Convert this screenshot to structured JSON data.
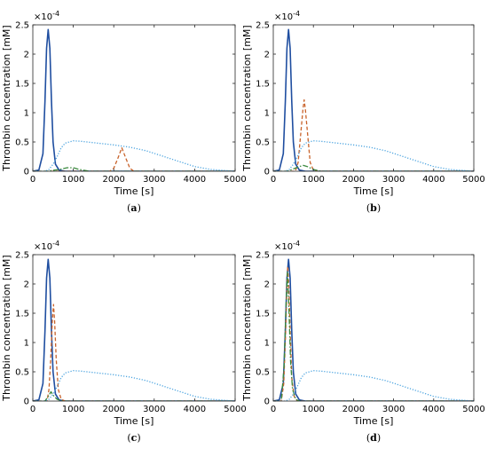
{
  "chart_data": [
    {
      "type": "line",
      "caption": "a",
      "exponent_label": "×10",
      "exponent_power": "-4",
      "xlabel": "Time [s]",
      "ylabel": "Thrombin concentration [mM]",
      "xlim": [
        0,
        5000
      ],
      "ylim": [
        0,
        0.00025
      ],
      "xticks": [
        "0",
        "1000",
        "2000",
        "3000",
        "4000",
        "5000"
      ],
      "yticks": [
        "0",
        "0.5",
        "1",
        "1.5",
        "2",
        "2.5"
      ],
      "grid": false,
      "series": [
        {
          "style": "solid",
          "color": "#1f4ea0",
          "points": [
            [
              0,
              0
            ],
            [
              150,
              2e-06
            ],
            [
              250,
              3e-05
            ],
            [
              300,
              0.00012
            ],
            [
              340,
              0.00021
            ],
            [
              380,
              0.000242
            ],
            [
              420,
              0.00021
            ],
            [
              460,
              0.00012
            ],
            [
              500,
              5e-05
            ],
            [
              560,
              1.2e-05
            ],
            [
              650,
              2e-06
            ],
            [
              800,
              0
            ],
            [
              5000,
              0
            ]
          ]
        },
        {
          "style": "dashed",
          "color": "#c8622a",
          "points": [
            [
              0,
              0
            ],
            [
              1900,
              0
            ],
            [
              2000,
              5e-06
            ],
            [
              2100,
              2.2e-05
            ],
            [
              2200,
              4e-05
            ],
            [
              2300,
              2.2e-05
            ],
            [
              2400,
              5e-06
            ],
            [
              2500,
              0
            ],
            [
              5000,
              0
            ]
          ]
        },
        {
          "style": "dashdot",
          "color": "#3b8a3e",
          "points": [
            [
              0,
              0
            ],
            [
              350,
              0
            ],
            [
              450,
              1e-06
            ],
            [
              650,
              3e-06
            ],
            [
              850,
              6e-06
            ],
            [
              1000,
              6e-06
            ],
            [
              1150,
              3e-06
            ],
            [
              1400,
              0
            ],
            [
              5000,
              0
            ]
          ]
        },
        {
          "style": "dotted",
          "color": "#4aa3df",
          "points": [
            [
              0,
              0
            ],
            [
              300,
              0
            ],
            [
              400,
              3e-06
            ],
            [
              500,
              1.2e-05
            ],
            [
              600,
              2.5e-05
            ],
            [
              700,
              4e-05
            ],
            [
              800,
              4.8e-05
            ],
            [
              1000,
              5.2e-05
            ],
            [
              1200,
              5.1e-05
            ],
            [
              1600,
              4.8e-05
            ],
            [
              2000,
              4.5e-05
            ],
            [
              2400,
              4.1e-05
            ],
            [
              2800,
              3.5e-05
            ],
            [
              3200,
              2.6e-05
            ],
            [
              3600,
              1.7e-05
            ],
            [
              4000,
              8e-06
            ],
            [
              4400,
              3e-06
            ],
            [
              4800,
              1e-06
            ],
            [
              5000,
              0
            ]
          ]
        }
      ]
    },
    {
      "type": "line",
      "caption": "b",
      "exponent_label": "×10",
      "exponent_power": "-4",
      "xlabel": "Time [s]",
      "ylabel": "Thrombin concentration [mM]",
      "xlim": [
        0,
        5000
      ],
      "ylim": [
        0,
        0.00025
      ],
      "xticks": [
        "0",
        "1000",
        "2000",
        "3000",
        "4000",
        "5000"
      ],
      "yticks": [
        "0",
        "0.5",
        "1",
        "1.5",
        "2",
        "2.5"
      ],
      "grid": false,
      "series": [
        {
          "style": "solid",
          "color": "#1f4ea0",
          "points": [
            [
              0,
              0
            ],
            [
              150,
              2e-06
            ],
            [
              250,
              3e-05
            ],
            [
              300,
              0.00012
            ],
            [
              340,
              0.00021
            ],
            [
              380,
              0.000242
            ],
            [
              420,
              0.00021
            ],
            [
              460,
              0.00012
            ],
            [
              500,
              5e-05
            ],
            [
              560,
              1.2e-05
            ],
            [
              650,
              2e-06
            ],
            [
              800,
              0
            ],
            [
              5000,
              0
            ]
          ]
        },
        {
          "style": "dashed",
          "color": "#c8622a",
          "points": [
            [
              0,
              0
            ],
            [
              550,
              0
            ],
            [
              620,
              1.5e-05
            ],
            [
              680,
              6e-05
            ],
            [
              740,
              0.000105
            ],
            [
              770,
              0.000122
            ],
            [
              800,
              0.000105
            ],
            [
              860,
              6e-05
            ],
            [
              920,
              1.5e-05
            ],
            [
              1000,
              2e-06
            ],
            [
              1100,
              0
            ],
            [
              5000,
              0
            ]
          ]
        },
        {
          "style": "dashdot",
          "color": "#3b8a3e",
          "points": [
            [
              0,
              0
            ],
            [
              350,
              0
            ],
            [
              500,
              4e-06
            ],
            [
              650,
              8e-06
            ],
            [
              750,
              1e-05
            ],
            [
              850,
              8e-06
            ],
            [
              1000,
              3e-06
            ],
            [
              1200,
              0
            ],
            [
              5000,
              0
            ]
          ]
        },
        {
          "style": "dotted",
          "color": "#4aa3df",
          "points": [
            [
              0,
              0
            ],
            [
              300,
              0
            ],
            [
              400,
              3e-06
            ],
            [
              500,
              1.2e-05
            ],
            [
              600,
              2.5e-05
            ],
            [
              700,
              4e-05
            ],
            [
              800,
              4.8e-05
            ],
            [
              1000,
              5.2e-05
            ],
            [
              1200,
              5.1e-05
            ],
            [
              1600,
              4.8e-05
            ],
            [
              2000,
              4.5e-05
            ],
            [
              2400,
              4.1e-05
            ],
            [
              2800,
              3.5e-05
            ],
            [
              3200,
              2.6e-05
            ],
            [
              3600,
              1.7e-05
            ],
            [
              4000,
              8e-06
            ],
            [
              4400,
              3e-06
            ],
            [
              4800,
              1e-06
            ],
            [
              5000,
              0
            ]
          ]
        }
      ]
    },
    {
      "type": "line",
      "caption": "c",
      "exponent_label": "×10",
      "exponent_power": "-4",
      "xlabel": "Time [s]",
      "ylabel": "Thrombin concentration [mM]",
      "xlim": [
        0,
        5000
      ],
      "ylim": [
        0,
        0.00025
      ],
      "xticks": [
        "0",
        "1000",
        "2000",
        "3000",
        "4000",
        "5000"
      ],
      "yticks": [
        "0",
        "0.5",
        "1",
        "1.5",
        "2",
        "2.5"
      ],
      "grid": false,
      "series": [
        {
          "style": "solid",
          "color": "#1f4ea0",
          "points": [
            [
              0,
              0
            ],
            [
              150,
              2e-06
            ],
            [
              250,
              3e-05
            ],
            [
              300,
              0.00012
            ],
            [
              340,
              0.00021
            ],
            [
              380,
              0.000242
            ],
            [
              420,
              0.00021
            ],
            [
              460,
              0.00012
            ],
            [
              500,
              5e-05
            ],
            [
              560,
              1.2e-05
            ],
            [
              650,
              2e-06
            ],
            [
              800,
              0
            ],
            [
              5000,
              0
            ]
          ]
        },
        {
          "style": "dashed",
          "color": "#c8622a",
          "points": [
            [
              0,
              0
            ],
            [
              350,
              0
            ],
            [
              400,
              2e-05
            ],
            [
              440,
              7e-05
            ],
            [
              480,
              0.000135
            ],
            [
              510,
              0.000165
            ],
            [
              540,
              0.000135
            ],
            [
              580,
              7e-05
            ],
            [
              630,
              2e-05
            ],
            [
              700,
              3e-06
            ],
            [
              800,
              0
            ],
            [
              5000,
              0
            ]
          ]
        },
        {
          "style": "dashdot",
          "color": "#3b8a3e",
          "points": [
            [
              0,
              0
            ],
            [
              300,
              0
            ],
            [
              400,
              1e-05
            ],
            [
              450,
              1.6e-05
            ],
            [
              500,
              1e-05
            ],
            [
              600,
              3e-06
            ],
            [
              750,
              0
            ],
            [
              5000,
              0
            ]
          ]
        },
        {
          "style": "dotted",
          "color": "#4aa3df",
          "points": [
            [
              0,
              0
            ],
            [
              300,
              0
            ],
            [
              400,
              3e-06
            ],
            [
              500,
              1.2e-05
            ],
            [
              600,
              2.5e-05
            ],
            [
              700,
              4e-05
            ],
            [
              800,
              4.8e-05
            ],
            [
              1000,
              5.2e-05
            ],
            [
              1200,
              5.1e-05
            ],
            [
              1600,
              4.8e-05
            ],
            [
              2000,
              4.5e-05
            ],
            [
              2400,
              4.1e-05
            ],
            [
              2800,
              3.5e-05
            ],
            [
              3200,
              2.6e-05
            ],
            [
              3600,
              1.7e-05
            ],
            [
              4000,
              8e-06
            ],
            [
              4400,
              3e-06
            ],
            [
              4800,
              1e-06
            ],
            [
              5000,
              0
            ]
          ]
        }
      ]
    },
    {
      "type": "line",
      "caption": "d",
      "exponent_label": "×10",
      "exponent_power": "-4",
      "xlabel": "Time [s]",
      "ylabel": "Thrombin concentration [mM]",
      "xlim": [
        0,
        5000
      ],
      "ylim": [
        0,
        0.00025
      ],
      "xticks": [
        "0",
        "1000",
        "2000",
        "3000",
        "4000",
        "5000"
      ],
      "yticks": [
        "0",
        "0.5",
        "1",
        "1.5",
        "2",
        "2.5"
      ],
      "grid": false,
      "series": [
        {
          "style": "solid",
          "color": "#1f4ea0",
          "points": [
            [
              0,
              0
            ],
            [
              150,
              2e-06
            ],
            [
              250,
              3e-05
            ],
            [
              300,
              0.00012
            ],
            [
              340,
              0.00021
            ],
            [
              380,
              0.000242
            ],
            [
              420,
              0.00021
            ],
            [
              460,
              0.00012
            ],
            [
              500,
              5e-05
            ],
            [
              560,
              1.2e-05
            ],
            [
              650,
              2e-06
            ],
            [
              800,
              0
            ],
            [
              5000,
              0
            ]
          ]
        },
        {
          "style": "dashed",
          "color": "#c8622a",
          "points": [
            [
              0,
              0
            ],
            [
              200,
              0
            ],
            [
              260,
              3e-05
            ],
            [
              310,
              0.00012
            ],
            [
              340,
              0.0002
            ],
            [
              360,
              0.00023
            ],
            [
              385,
              0.0002
            ],
            [
              420,
              0.00012
            ],
            [
              460,
              4e-05
            ],
            [
              520,
              8e-06
            ],
            [
              600,
              0
            ],
            [
              5000,
              0
            ]
          ]
        },
        {
          "style": "dashdot",
          "color": "#3b8a3e",
          "points": [
            [
              0,
              0
            ],
            [
              200,
              0
            ],
            [
              270,
              6e-05
            ],
            [
              320,
              0.00017
            ],
            [
              355,
              0.00022
            ],
            [
              390,
              0.00016
            ],
            [
              430,
              7e-05
            ],
            [
              480,
              2e-05
            ],
            [
              560,
              3e-06
            ],
            [
              650,
              0
            ],
            [
              5000,
              0
            ]
          ]
        },
        {
          "style": "dotted",
          "color": "#4aa3df",
          "points": [
            [
              0,
              0
            ],
            [
              300,
              0
            ],
            [
              400,
              3e-06
            ],
            [
              500,
              1.2e-05
            ],
            [
              600,
              2.5e-05
            ],
            [
              700,
              4e-05
            ],
            [
              800,
              4.8e-05
            ],
            [
              1000,
              5.2e-05
            ],
            [
              1200,
              5.1e-05
            ],
            [
              1600,
              4.8e-05
            ],
            [
              2000,
              4.5e-05
            ],
            [
              2400,
              4.1e-05
            ],
            [
              2800,
              3.5e-05
            ],
            [
              3200,
              2.6e-05
            ],
            [
              3600,
              1.7e-05
            ],
            [
              4000,
              8e-06
            ],
            [
              4400,
              3e-06
            ],
            [
              4800,
              1e-06
            ],
            [
              5000,
              0
            ]
          ]
        }
      ]
    }
  ]
}
